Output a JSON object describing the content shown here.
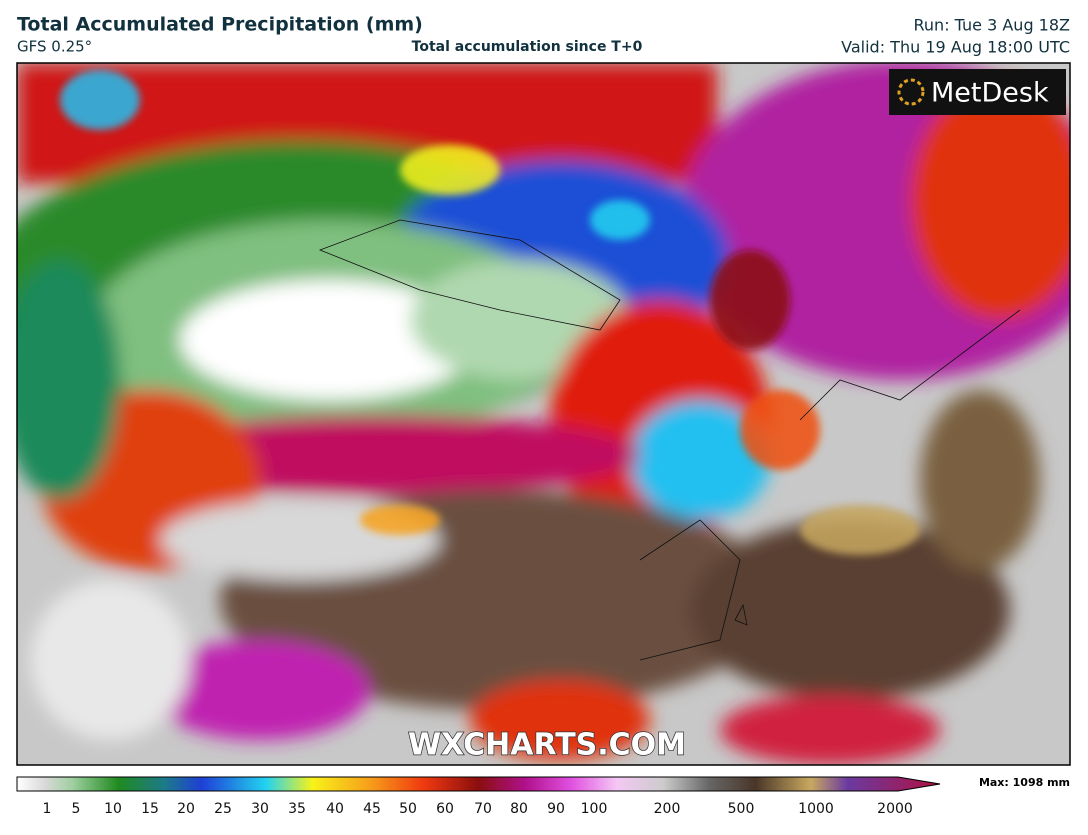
{
  "header": {
    "title": "Total Accumulated Precipitation (mm)",
    "model": "GFS 0.25°",
    "subtitle": "Total accumulation since T+0",
    "run": "Run: Tue 3 Aug 18Z",
    "valid": "Valid: Thu 19 Aug 18:00 UTC"
  },
  "map": {
    "logo": "MetDesk",
    "watermark": "WXCHARTS.COM"
  },
  "colorbar": {
    "labels": [
      1,
      5,
      10,
      15,
      20,
      25,
      30,
      35,
      40,
      45,
      50,
      60,
      70,
      80,
      90,
      100,
      200,
      500,
      1000,
      2000
    ],
    "max": "Max: 1098 mm"
  }
}
